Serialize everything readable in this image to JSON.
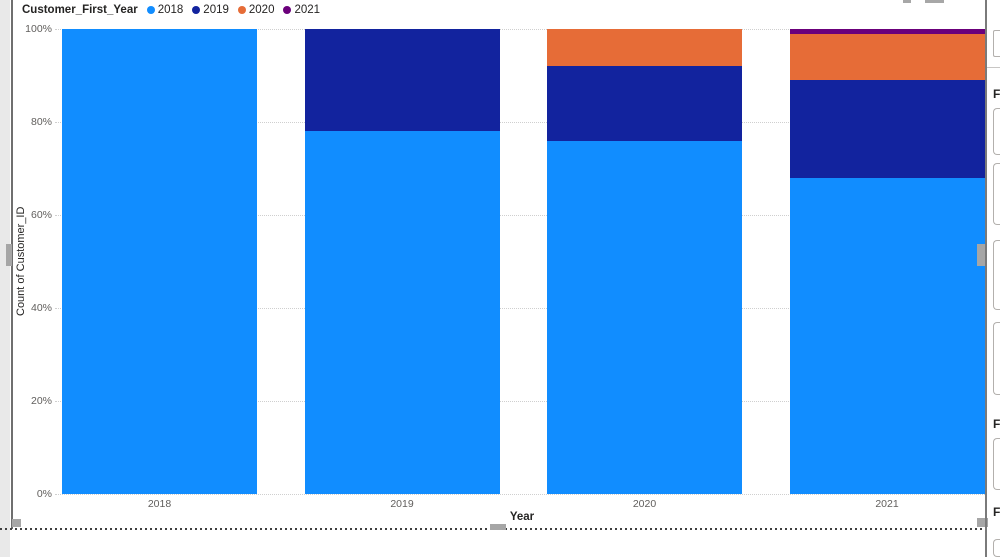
{
  "legend": {
    "title": "Customer_First_Year"
  },
  "chart_data": {
    "type": "bar",
    "subtype": "100-percent-stacked-column",
    "title": "",
    "categories": [
      "2018",
      "2019",
      "2020",
      "2021"
    ],
    "series": [
      {
        "name": "2018",
        "color": "#118DFF",
        "values": [
          100,
          78,
          76,
          68
        ]
      },
      {
        "name": "2019",
        "color": "#12239E",
        "values": [
          0,
          22,
          16,
          21
        ]
      },
      {
        "name": "2020",
        "color": "#E66C37",
        "values": [
          0,
          0,
          8,
          10
        ]
      },
      {
        "name": "2021",
        "color": "#6B007B",
        "values": [
          0,
          0,
          0,
          1
        ]
      }
    ],
    "xlabel": "Year",
    "ylabel": "Count of Customer_ID",
    "yticks": [
      "0%",
      "20%",
      "40%",
      "60%",
      "80%",
      "100%"
    ],
    "ytick_values": [
      0,
      20,
      40,
      60,
      80,
      100
    ],
    "ylim": [
      0,
      100
    ],
    "grid": "dotted-horizontal",
    "legend_position": "top-left"
  },
  "right_pane": {
    "headers": [
      "F",
      "F",
      "F"
    ]
  },
  "colors": {
    "axis_text": "#605E5C",
    "gridline": "#cfcfcf",
    "selection_handle": "#a6a6a6"
  }
}
